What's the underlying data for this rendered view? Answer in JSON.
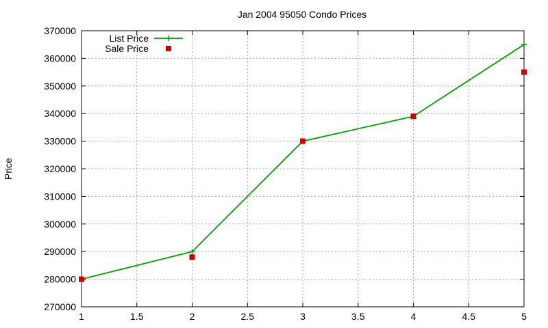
{
  "chart_data": {
    "type": "line",
    "title": "Jan 2004 95050 Condo Prices",
    "xlabel": "",
    "ylabel": "Price",
    "xlim": [
      1,
      5
    ],
    "ylim": [
      270000,
      370000
    ],
    "x_ticks": [
      "1",
      "1.5",
      "2",
      "2.5",
      "3",
      "3.5",
      "4",
      "4.5",
      "5"
    ],
    "y_ticks": [
      "270000",
      "280000",
      "290000",
      "300000",
      "310000",
      "320000",
      "330000",
      "340000",
      "350000",
      "360000",
      "370000"
    ],
    "grid": true,
    "legend_position": "top-left",
    "series": [
      {
        "name": "List Price",
        "style": "linespoints",
        "marker": "plus",
        "color": "#00a000",
        "x": [
          1,
          2,
          3,
          4,
          5
        ],
        "y": [
          280000,
          290000,
          330000,
          339000,
          365000
        ]
      },
      {
        "name": "Sale Price",
        "style": "points",
        "marker": "square",
        "color": "#cc0000",
        "x": [
          1,
          2,
          3,
          4,
          5
        ],
        "y": [
          280000,
          288000,
          330000,
          339000,
          355000
        ]
      }
    ]
  }
}
